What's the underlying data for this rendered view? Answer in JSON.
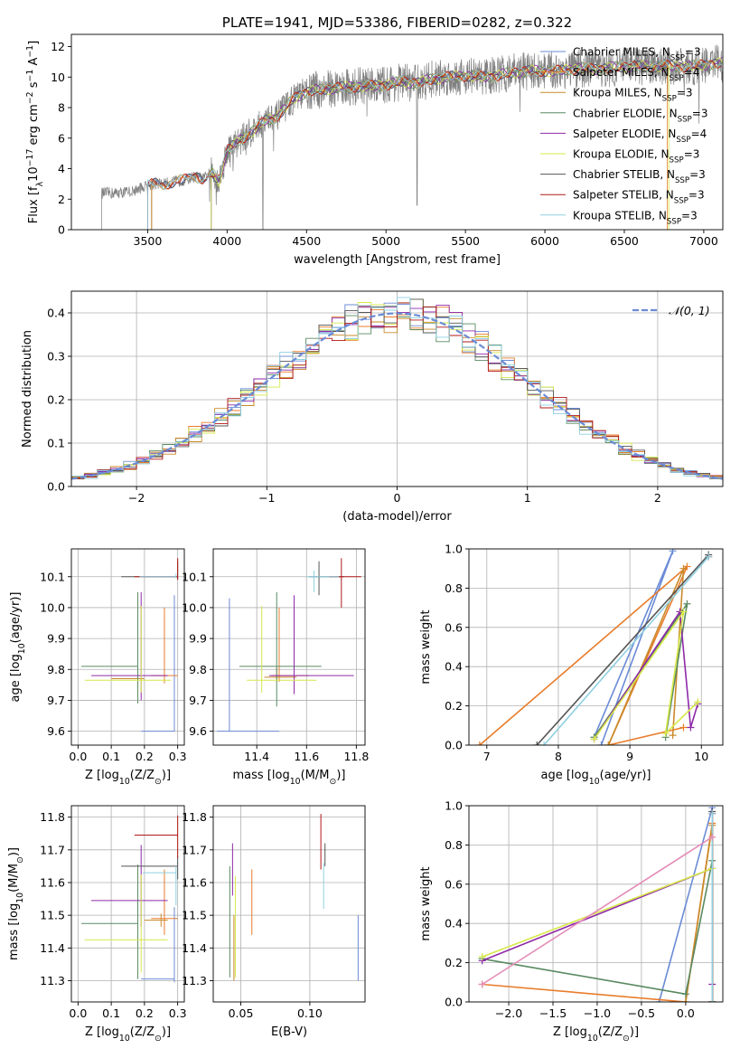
{
  "colors": {
    "Chabrier MILES": "#6a8bd6",
    "Salpeter MILES": "#e87c2a",
    "Kroupa MILES": "#c98a2a",
    "Chabrier ELODIE": "#5a8a62",
    "Salpeter ELODIE": "#8e2aa8",
    "Kroupa ELODIE": "#d6e84a",
    "Chabrier STELIB": "#555555",
    "Salpeter STELIB": "#b01818",
    "Kroupa STELIB": "#8fd0e0",
    "gauss": "#6a8bd6",
    "spectrum": "#808080"
  },
  "chart_data": [
    {
      "type": "line",
      "title": "PLATE=1941, MJD=53386, FIBERID=0282, z=0.322",
      "xlabel": "wavelength [Angstrom, rest frame]",
      "ylabel": "Flux [f$_\\lambda$10$^{-17}$ erg cm$^{-2}$ s$^{-1}$ A$^{-1}$]",
      "xlim": [
        3020,
        7120
      ],
      "ylim": [
        0,
        12.8
      ],
      "xticks": [
        3500,
        4000,
        4500,
        5000,
        5500,
        6000,
        6500,
        7000
      ],
      "yticks": [
        0,
        2,
        4,
        6,
        8,
        10,
        12
      ],
      "legend_location": "upper right",
      "legend": [
        {
          "name": "Chabrier MILES",
          "label": "Chabrier MILES, N$_{SSP}$=3"
        },
        {
          "name": "Salpeter MILES",
          "label": "Salpeter MILES, N$_{SSP}$=4"
        },
        {
          "name": "Kroupa MILES",
          "label": "Kroupa MILES, N$_{SSP}$=3"
        },
        {
          "name": "Chabrier ELODIE",
          "label": "Chabrier ELODIE, N$_{SSP}$=3"
        },
        {
          "name": "Salpeter ELODIE",
          "label": "Salpeter ELODIE, N$_{SSP}$=4"
        },
        {
          "name": "Kroupa ELODIE",
          "label": "Kroupa ELODIE, N$_{SSP}$=3"
        },
        {
          "name": "Chabrier STELIB",
          "label": "Chabrier STELIB, N$_{SSP}$=3"
        },
        {
          "name": "Salpeter STELIB",
          "label": "Salpeter STELIB, N$_{SSP}$=3"
        },
        {
          "name": "Kroupa STELIB",
          "label": "Kroupa STELIB, N$_{SSP}$=3"
        }
      ],
      "continuum": {
        "x": [
          3210,
          3300,
          3400,
          3500,
          3550,
          3600,
          3650,
          3700,
          3750,
          3800,
          3850,
          3900,
          3950,
          4000,
          4050,
          4100,
          4150,
          4200,
          4250,
          4300,
          4350,
          4400,
          4450,
          4500,
          4600,
          4700,
          4800,
          4900,
          5000,
          5100,
          5200,
          5300,
          5400,
          5500,
          5600,
          5700,
          5800,
          5900,
          6000,
          6100,
          6200,
          6300,
          6400,
          6500,
          6600,
          6700,
          6800,
          6900,
          7000,
          7100
        ],
        "y": [
          2.4,
          2.4,
          2.5,
          2.9,
          3.0,
          3.0,
          3.1,
          3.2,
          3.3,
          3.5,
          3.3,
          3.8,
          3.2,
          5.2,
          5.6,
          6.0,
          6.4,
          6.8,
          7.2,
          7.3,
          7.8,
          8.4,
          8.8,
          9.0,
          9.2,
          9.3,
          9.4,
          9.4,
          9.5,
          9.7,
          9.6,
          9.9,
          10.0,
          10.1,
          10.0,
          10.1,
          10.3,
          10.4,
          10.4,
          10.4,
          10.6,
          10.5,
          10.6,
          10.7,
          10.7,
          10.7,
          10.7,
          10.7,
          10.8,
          10.9
        ]
      },
      "spectrum_start": 3210,
      "models_start": {
        "Chabrier MILES": 3525,
        "Salpeter MILES": 3525,
        "Kroupa MILES": 3525,
        "Chabrier ELODIE": 3900,
        "Salpeter ELODIE": 3900,
        "Kroupa ELODIE": 3900,
        "Chabrier STELIB": 3500,
        "Salpeter STELIB": 3500,
        "Kroupa STELIB": 3500
      }
    },
    {
      "type": "bar",
      "xlabel": "(data-model)/error",
      "ylabel": "Normed distribution",
      "xlim": [
        -2.5,
        2.5
      ],
      "ylim": [
        0,
        0.45
      ],
      "xticks": [
        -2,
        -1,
        0,
        1,
        2
      ],
      "yticks": [
        0.0,
        0.1,
        0.2,
        0.3,
        0.4
      ],
      "legend": [
        {
          "name": "gauss",
          "label": "$\\mathcal{N}(0,1)$"
        }
      ],
      "legend_location": "upper right",
      "bins": {
        "start": -2.5,
        "width": 0.1,
        "count": 50
      },
      "gauss": {
        "mu": 0,
        "sigma": 1
      }
    },
    {
      "type": "scatter",
      "xlabel": "Z [log$_{10}$(Z/Z$_\\odot$)]",
      "ylabel": "age  [log$_{10}$(age/yr)]",
      "xlim": [
        -0.02,
        0.32
      ],
      "ylim": [
        9.555,
        10.19
      ],
      "xticks": [
        0.0,
        0.1,
        0.2,
        0.3
      ],
      "yticks": [
        9.6,
        9.7,
        9.8,
        9.9,
        10.0,
        10.1
      ],
      "errorbars": [
        {
          "series": "Chabrier MILES",
          "x": 0.29,
          "y": 9.6,
          "xerr": [
            0.1,
            0
          ],
          "yerr": [
            0,
            0.44
          ]
        },
        {
          "series": "Salpeter MILES",
          "x": 0.26,
          "y": 9.78,
          "xerr": [
            0.04,
            0.04
          ],
          "yerr": [
            0.025,
            0.22
          ]
        },
        {
          "series": "Kroupa MILES",
          "x": 0.18,
          "y": 9.77,
          "xerr": [
            0.08,
            0.02
          ],
          "yerr": [
            0.025,
            0.025
          ]
        },
        {
          "series": "Chabrier ELODIE",
          "x": 0.18,
          "y": 9.81,
          "xerr": [
            0.17,
            0
          ],
          "yerr": [
            0.12,
            0.24
          ]
        },
        {
          "series": "Salpeter ELODIE",
          "x": 0.19,
          "y": 9.78,
          "xerr": [
            0.15,
            0.08
          ],
          "yerr": [
            0.08,
            0.27
          ]
        },
        {
          "series": "Kroupa ELODIE",
          "x": 0.19,
          "y": 9.765,
          "xerr": [
            0.17,
            0.09
          ],
          "yerr": [
            0.04,
            0.24
          ]
        },
        {
          "series": "Chabrier STELIB",
          "x": 0.3,
          "y": 10.1,
          "xerr": [
            0.17,
            0
          ],
          "yerr": [
            0.01,
            0.05
          ]
        },
        {
          "series": "Salpeter STELIB",
          "x": 0.3,
          "y": 10.1,
          "xerr": [
            0.13,
            0
          ],
          "yerr": [
            0.01,
            0.06
          ]
        },
        {
          "series": "Kroupa STELIB",
          "x": 0.295,
          "y": 10.1,
          "xerr": [
            0.11,
            0
          ],
          "yerr": [
            0.005,
            0.01
          ]
        }
      ]
    },
    {
      "type": "scatter",
      "xlabel": "mass [log$_{10}$(M/M$_\\odot$)]",
      "ylabel": "",
      "xlim": [
        11.225,
        11.835
      ],
      "ylim": [
        9.555,
        10.19
      ],
      "xticks": [
        11.4,
        11.6,
        11.8
      ],
      "yticks": [
        9.6,
        9.7,
        9.8,
        9.9,
        10.0,
        10.1
      ],
      "errorbars": [
        {
          "series": "Chabrier MILES",
          "x": 11.29,
          "y": 9.6,
          "xerr": [
            0.05,
            0.2
          ],
          "yerr": [
            0,
            0.43
          ]
        },
        {
          "series": "Salpeter MILES",
          "x": 11.49,
          "y": 9.78,
          "xerr": [
            0.03,
            0.12
          ],
          "yerr": [
            0.02,
            0.22
          ]
        },
        {
          "series": "Kroupa MILES",
          "x": 11.48,
          "y": 9.775,
          "xerr": [
            0.05,
            0.08
          ],
          "yerr": [
            0.015,
            0.03
          ]
        },
        {
          "series": "Chabrier ELODIE",
          "x": 11.48,
          "y": 9.81,
          "xerr": [
            0.15,
            0.18
          ],
          "yerr": [
            0.13,
            0.24
          ]
        },
        {
          "series": "Salpeter ELODIE",
          "x": 11.55,
          "y": 9.78,
          "xerr": [
            0.1,
            0.24
          ],
          "yerr": [
            0.06,
            0.26
          ]
        },
        {
          "series": "Kroupa ELODIE",
          "x": 11.42,
          "y": 9.765,
          "xerr": [
            0.06,
            0.22
          ],
          "yerr": [
            0.04,
            0.24
          ]
        },
        {
          "series": "Chabrier STELIB",
          "x": 11.65,
          "y": 10.1,
          "xerr": [
            0.04,
            0.1
          ],
          "yerr": [
            0.06,
            0.05
          ]
        },
        {
          "series": "Salpeter STELIB",
          "x": 11.74,
          "y": 10.1,
          "xerr": [
            0.05,
            0.08
          ],
          "yerr": [
            0.1,
            0.06
          ]
        },
        {
          "series": "Kroupa STELIB",
          "x": 11.63,
          "y": 10.1,
          "xerr": [
            0.03,
            0.1
          ],
          "yerr": [
            0.05,
            0.02
          ]
        }
      ]
    },
    {
      "type": "line",
      "xlabel": "age  [log$_{10}$(age/yr)]",
      "ylabel": "mass weight",
      "xlim": [
        6.75,
        10.3
      ],
      "ylim": [
        0,
        1.0
      ],
      "xticks": [
        7,
        8,
        9,
        10
      ],
      "yticks": [
        0.0,
        0.2,
        0.4,
        0.6,
        0.8,
        1.0
      ],
      "series": [
        {
          "name": "Chabrier MILES",
          "x": [
            8.5,
            9.6,
            8.6
          ],
          "y": [
            0.04,
            0.99,
            0.0
          ]
        },
        {
          "name": "Salpeter MILES",
          "x": [
            6.9,
            9.8,
            8.7,
            9.75
          ],
          "y": [
            0.0,
            0.91,
            0.0,
            0.09
          ]
        },
        {
          "name": "Kroupa MILES",
          "x": [
            8.7,
            9.75,
            9.6
          ],
          "y": [
            0.0,
            0.9,
            0.05
          ]
        },
        {
          "name": "Chabrier ELODIE",
          "x": [
            8.5,
            9.8,
            9.5
          ],
          "y": [
            0.04,
            0.72,
            0.04
          ]
        },
        {
          "name": "Salpeter ELODIE",
          "x": [
            8.5,
            9.7,
            9.85,
            9.95
          ],
          "y": [
            0.03,
            0.68,
            0.09,
            0.21
          ]
        },
        {
          "name": "Kroupa ELODIE",
          "x": [
            8.5,
            9.75,
            9.5,
            9.95
          ],
          "y": [
            0.03,
            0.68,
            0.06,
            0.22
          ]
        },
        {
          "name": "Chabrier STELIB",
          "x": [
            7.7,
            10.1
          ],
          "y": [
            0.0,
            0.97
          ]
        },
        {
          "name": "Salpeter STELIB",
          "x": [
            10.1
          ],
          "y": [
            0.96
          ]
        },
        {
          "name": "Kroupa STELIB",
          "x": [
            7.8,
            10.1
          ],
          "y": [
            0.0,
            0.96
          ]
        }
      ]
    },
    {
      "type": "scatter",
      "xlabel": "Z [log$_{10}$(Z/Z$_\\odot$)]",
      "ylabel": "mass [log$_{10}$(M/M$_\\odot$)]",
      "xlim": [
        -0.02,
        0.32
      ],
      "ylim": [
        11.235,
        11.835
      ],
      "xticks": [
        0.0,
        0.1,
        0.2,
        0.3
      ],
      "yticks": [
        11.3,
        11.4,
        11.5,
        11.6,
        11.7,
        11.8
      ],
      "errorbars": [
        {
          "series": "Chabrier MILES",
          "x": 0.29,
          "y": 11.305,
          "xerr": [
            0.1,
            0
          ],
          "yerr": [
            0.01,
            0.22
          ]
        },
        {
          "series": "Salpeter MILES",
          "x": 0.26,
          "y": 11.49,
          "xerr": [
            0.04,
            0.04
          ],
          "yerr": [
            0.05,
            0.15
          ]
        },
        {
          "series": "Kroupa MILES",
          "x": 0.25,
          "y": 11.485,
          "xerr": [
            0.05,
            0.02
          ],
          "yerr": [
            0.02,
            0.02
          ]
        },
        {
          "series": "Chabrier ELODIE",
          "x": 0.18,
          "y": 11.475,
          "xerr": [
            0.17,
            0.0
          ],
          "yerr": [
            0.17,
            0.18
          ]
        },
        {
          "series": "Salpeter ELODIE",
          "x": 0.19,
          "y": 11.545,
          "xerr": [
            0.15,
            0.08
          ],
          "yerr": [
            0.08,
            0.17
          ]
        },
        {
          "series": "Kroupa ELODIE",
          "x": 0.19,
          "y": 11.425,
          "xerr": [
            0.17,
            0.08
          ],
          "yerr": [
            0.1,
            0.2
          ]
        },
        {
          "series": "Chabrier STELIB",
          "x": 0.3,
          "y": 11.65,
          "xerr": [
            0.17,
            0
          ],
          "yerr": [
            0.04,
            0.03
          ]
        },
        {
          "series": "Salpeter STELIB",
          "x": 0.3,
          "y": 11.745,
          "xerr": [
            0.13,
            0
          ],
          "yerr": [
            0.07,
            0.06
          ]
        },
        {
          "series": "Kroupa STELIB",
          "x": 0.295,
          "y": 11.63,
          "xerr": [
            0.1,
            0
          ],
          "yerr": [
            0.1,
            0.02
          ]
        }
      ]
    },
    {
      "type": "scatter",
      "xlabel": "E(B-V)",
      "ylabel": "",
      "xlim": [
        0.03,
        0.14
      ],
      "ylim": [
        11.235,
        11.835
      ],
      "xticks": [
        0.05,
        0.1
      ],
      "yticks": [
        11.3,
        11.4,
        11.5,
        11.6,
        11.7,
        11.8
      ],
      "errorbars": [
        {
          "series": "Chabrier MILES",
          "x": 0.135,
          "y": 11.4,
          "xerr": [
            0,
            0
          ],
          "yerr": [
            0.1,
            0.1
          ]
        },
        {
          "series": "Salpeter MILES",
          "x": 0.058,
          "y": 11.54,
          "xerr": [
            0,
            0
          ],
          "yerr": [
            0.1,
            0.1
          ]
        },
        {
          "series": "Kroupa MILES",
          "x": 0.045,
          "y": 11.5,
          "xerr": [
            0,
            0
          ],
          "yerr": [
            0.2,
            0.0
          ]
        },
        {
          "series": "Chabrier ELODIE",
          "x": 0.042,
          "y": 11.48,
          "xerr": [
            0,
            0
          ],
          "yerr": [
            0.17,
            0.17
          ]
        },
        {
          "series": "Salpeter ELODIE",
          "x": 0.044,
          "y": 11.62,
          "xerr": [
            0,
            0
          ],
          "yerr": [
            0.06,
            0.1
          ]
        },
        {
          "series": "Kroupa ELODIE",
          "x": 0.046,
          "y": 11.45,
          "xerr": [
            0,
            0
          ],
          "yerr": [
            0.14,
            0.17
          ]
        },
        {
          "series": "Chabrier STELIB",
          "x": 0.111,
          "y": 11.68,
          "xerr": [
            0,
            0
          ],
          "yerr": [
            0.03,
            0.04
          ]
        },
        {
          "series": "Salpeter STELIB",
          "x": 0.108,
          "y": 11.72,
          "xerr": [
            0,
            0
          ],
          "yerr": [
            0.08,
            0.09
          ]
        },
        {
          "series": "Kroupa STELIB",
          "x": 0.11,
          "y": 11.58,
          "xerr": [
            0,
            0
          ],
          "yerr": [
            0.06,
            0.08
          ]
        }
      ]
    },
    {
      "type": "line",
      "xlabel": "Z [log$_{10}$(Z/Z$_\\odot$)]",
      "ylabel": "mass weight",
      "xlim": [
        -2.45,
        0.42
      ],
      "ylim": [
        0,
        1.0
      ],
      "xticks": [
        -2.0,
        -1.5,
        -1.0,
        -0.5,
        0.0
      ],
      "yticks": [
        0.0,
        0.2,
        0.4,
        0.6,
        0.8,
        1.0
      ],
      "series": [
        {
          "name": "Chabrier MILES",
          "x": [
            -0.3,
            0.3,
            0.3
          ],
          "y": [
            0.0,
            0.99,
            0.0
          ]
        },
        {
          "name": "Salpeter MILES",
          "x": [
            -2.3,
            0.0,
            0.3,
            0.3
          ],
          "y": [
            0.09,
            0.0,
            0.91,
            0.0
          ]
        },
        {
          "name": "Kroupa MILES",
          "x": [
            0.0,
            0.3,
            0.3
          ],
          "y": [
            0.0,
            0.9,
            0.0
          ]
        },
        {
          "name": "Chabrier ELODIE",
          "x": [
            -2.3,
            0.0,
            0.3,
            0.3
          ],
          "y": [
            0.22,
            0.04,
            0.72,
            0.0
          ]
        },
        {
          "name": "Salpeter ELODIE",
          "x": [
            -2.3,
            0.3,
            0.3,
            0.3
          ],
          "y": [
            0.21,
            0.68,
            0.09,
            0.0
          ]
        },
        {
          "name": "Kroupa ELODIE",
          "x": [
            -2.3,
            0.3,
            0.3
          ],
          "y": [
            0.23,
            0.68,
            0.0
          ]
        },
        {
          "name": "Chabrier STELIB",
          "x": [
            0.3,
            0.3
          ],
          "y": [
            0.0,
            0.97
          ]
        },
        {
          "name": "Salpeter STELIB",
          "x": [
            0.3,
            0.3
          ],
          "y": [
            0.0,
            0.96
          ]
        },
        {
          "name": "Kroupa STELIB",
          "x": [
            0.3,
            0.3
          ],
          "y": [
            0.0,
            0.96
          ]
        }
      ],
      "extra_series": [
        {
          "name": "Salpeter MILES pink",
          "color": "#e58cb8",
          "x": [
            -2.3,
            0.3
          ],
          "y": [
            0.09,
            0.84
          ]
        }
      ]
    }
  ]
}
